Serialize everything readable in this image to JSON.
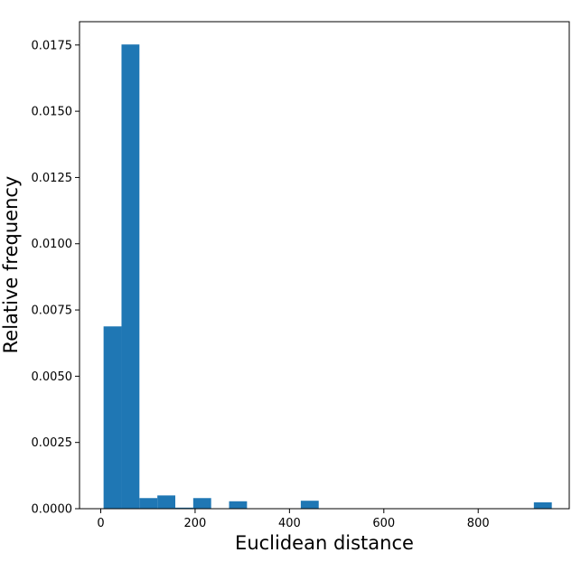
{
  "chart_data": {
    "type": "bar",
    "histogram": true,
    "xlabel": "Euclidean distance",
    "ylabel": "Relative frequency",
    "xlim": [
      -45,
      993
    ],
    "ylim": [
      0,
      0.01838
    ],
    "x_ticks": [
      {
        "value": 0,
        "label": "0"
      },
      {
        "value": 200,
        "label": "200"
      },
      {
        "value": 400,
        "label": "400"
      },
      {
        "value": 600,
        "label": "600"
      },
      {
        "value": 800,
        "label": "800"
      }
    ],
    "y_ticks": [
      {
        "value": 0.0,
        "label": "0.0000"
      },
      {
        "value": 0.0025,
        "label": "0.0025"
      },
      {
        "value": 0.005,
        "label": "0.0050"
      },
      {
        "value": 0.0075,
        "label": "0.0075"
      },
      {
        "value": 0.01,
        "label": "0.0100"
      },
      {
        "value": 0.0125,
        "label": "0.0125"
      },
      {
        "value": 0.015,
        "label": "0.0150"
      },
      {
        "value": 0.0175,
        "label": "0.0175"
      }
    ],
    "bins": [
      {
        "x0": 6,
        "x1": 44,
        "value": 0.00688
      },
      {
        "x0": 44,
        "x1": 82,
        "value": 0.01752
      },
      {
        "x0": 82,
        "x1": 120,
        "value": 0.0004
      },
      {
        "x0": 120,
        "x1": 158,
        "value": 0.0005
      },
      {
        "x0": 158,
        "x1": 196,
        "value": 4e-05
      },
      {
        "x0": 196,
        "x1": 234,
        "value": 0.0004
      },
      {
        "x0": 234,
        "x1": 272,
        "value": 0.0
      },
      {
        "x0": 272,
        "x1": 310,
        "value": 0.00028
      },
      {
        "x0": 310,
        "x1": 348,
        "value": 0.0
      },
      {
        "x0": 348,
        "x1": 386,
        "value": 0.0
      },
      {
        "x0": 386,
        "x1": 424,
        "value": 0.0
      },
      {
        "x0": 424,
        "x1": 462,
        "value": 0.0003
      },
      {
        "x0": 462,
        "x1": 500,
        "value": 0.0
      },
      {
        "x0": 500,
        "x1": 538,
        "value": 0.0
      },
      {
        "x0": 538,
        "x1": 576,
        "value": 0.0
      },
      {
        "x0": 576,
        "x1": 614,
        "value": 0.0
      },
      {
        "x0": 614,
        "x1": 652,
        "value": 0.0
      },
      {
        "x0": 652,
        "x1": 690,
        "value": 0.0
      },
      {
        "x0": 690,
        "x1": 728,
        "value": 0.0
      },
      {
        "x0": 728,
        "x1": 766,
        "value": 0.0
      },
      {
        "x0": 766,
        "x1": 804,
        "value": 0.0
      },
      {
        "x0": 804,
        "x1": 842,
        "value": 0.0
      },
      {
        "x0": 842,
        "x1": 880,
        "value": 0.0
      },
      {
        "x0": 880,
        "x1": 918,
        "value": 0.0
      },
      {
        "x0": 918,
        "x1": 956,
        "value": 0.00024
      }
    ],
    "bar_color": "#1f77b4",
    "grid": false,
    "legend": "none"
  }
}
